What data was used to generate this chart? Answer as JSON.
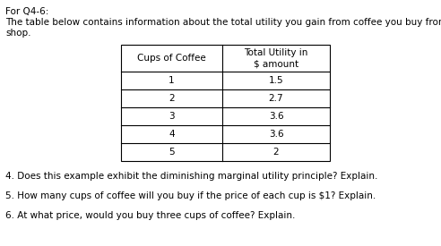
{
  "title_line1": "For Q4-6:",
  "title_line2": "The table below contains information about the total utility you gain from coffee you buy from a coffee",
  "title_line3": "shop.",
  "col1_header_line1": "Cups of Coffee",
  "col2_header_line1": "Total Utility in",
  "col2_header_line2": "$ amount",
  "cups": [
    "1",
    "2",
    "3",
    "4",
    "5"
  ],
  "utility": [
    "1.5",
    "2.7",
    "3.6",
    "3.6",
    "2"
  ],
  "q4": "4. Does this example exhibit the diminishing marginal utility principle? Explain.",
  "q5": "5. How many cups of coffee will you buy if the price of each cup is $1? Explain.",
  "q6": "6. At what price, would you buy three cups of coffee? Explain.",
  "bg_color": "#ffffff",
  "text_color": "#000000",
  "font_size": 7.5,
  "table_font_size": 7.5,
  "fig_width": 4.92,
  "fig_height": 2.75,
  "dpi": 100
}
